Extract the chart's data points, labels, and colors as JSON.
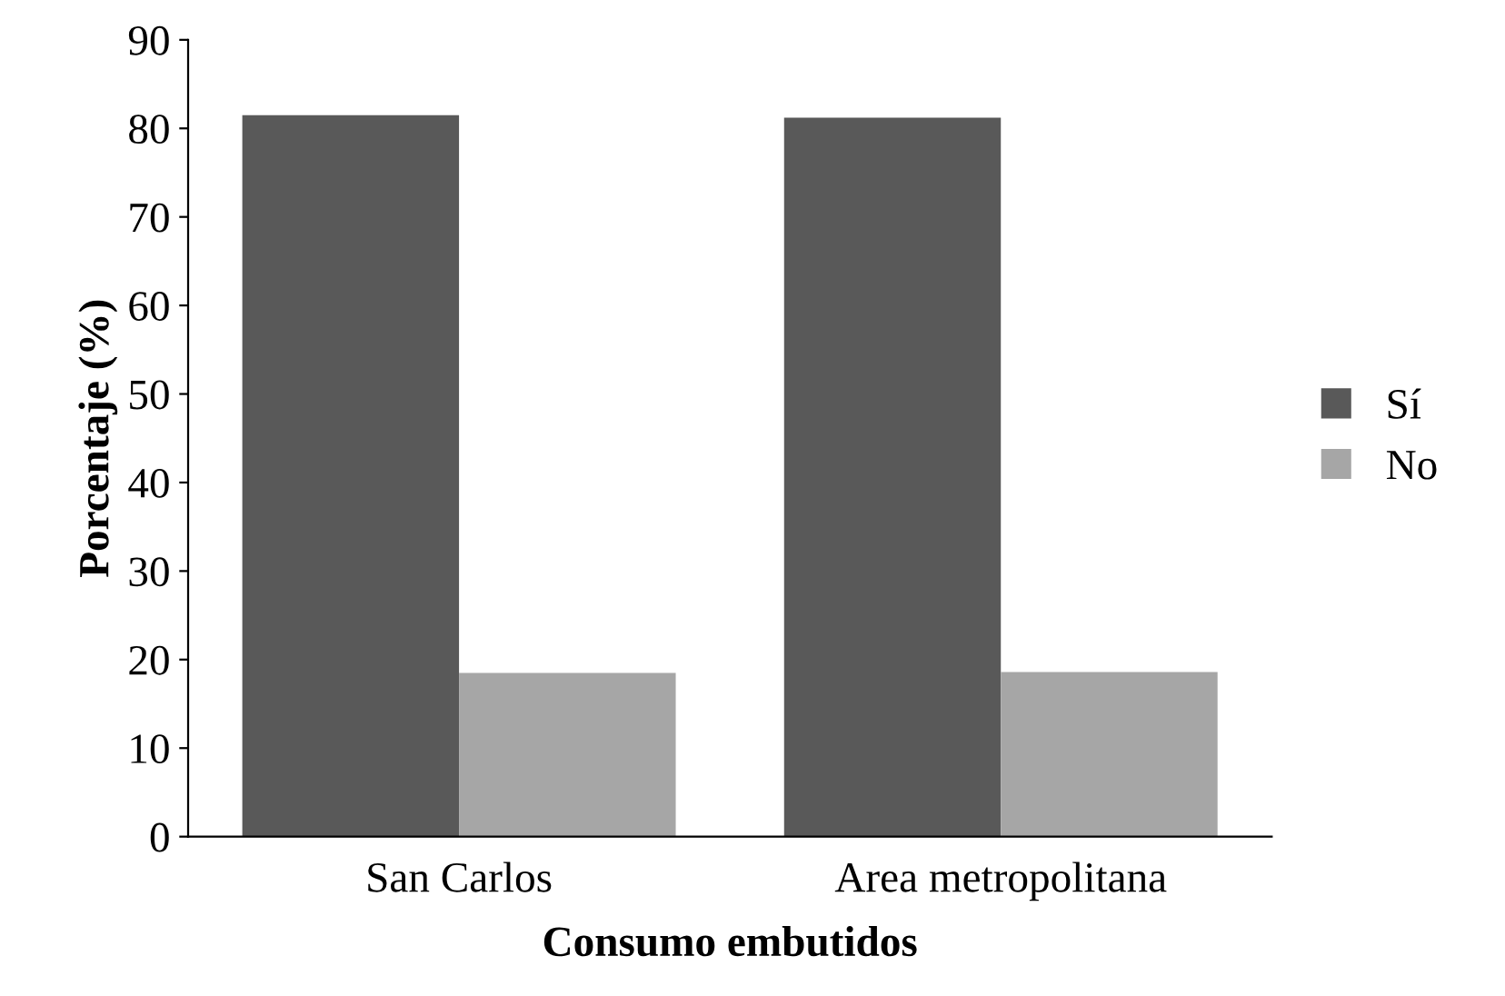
{
  "chart_data": {
    "type": "bar",
    "xlabel": "Consumo embutidos",
    "ylabel": "Porcentaje (%)",
    "categories": [
      "San Carlos",
      "Area metropolitana"
    ],
    "series": [
      {
        "name": "Sí",
        "color": "#595959",
        "values": [
          81.5,
          81.2
        ]
      },
      {
        "name": "No",
        "color": "#a6a6a6",
        "values": [
          18.5,
          18.6
        ]
      }
    ],
    "ylim": [
      0,
      90
    ],
    "yticks": [
      0,
      10,
      20,
      30,
      40,
      50,
      60,
      70,
      80,
      90
    ],
    "grid": false,
    "legend": "right"
  }
}
